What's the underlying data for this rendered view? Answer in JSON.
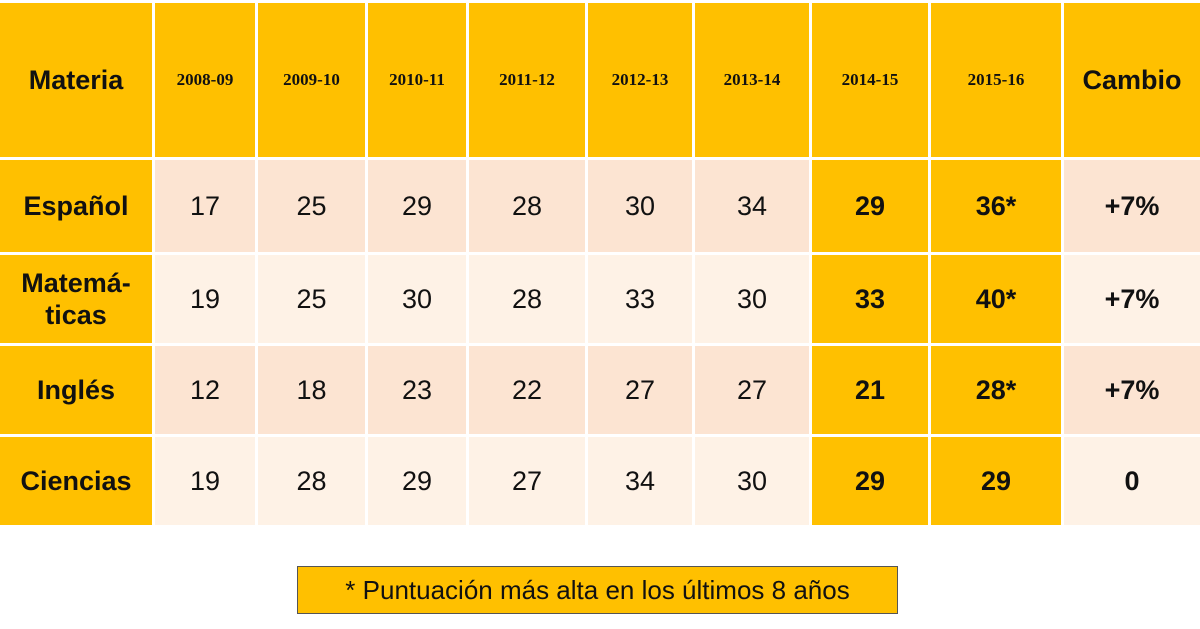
{
  "table": {
    "header": [
      "Materia",
      "2008-09",
      "2009-10",
      "2010-11",
      "2011-12",
      "2012-13",
      "2013-14",
      "2014-15",
      "2015-16",
      "Cambio"
    ],
    "rows": [
      [
        "Español",
        "17",
        "25",
        "29",
        "28",
        "30",
        "34",
        "29",
        "36*",
        "+7%"
      ],
      [
        "Matemá-\nticas",
        "19",
        "25",
        "30",
        "28",
        "33",
        "30",
        "33",
        "40*",
        "+7%"
      ],
      [
        "Inglés",
        "12",
        "18",
        "23",
        "22",
        "27",
        "27",
        "21",
        "28*",
        "+7%"
      ],
      [
        "Ciencias",
        "19",
        "28",
        "29",
        "27",
        "34",
        "30",
        "29",
        "29",
        "0"
      ]
    ]
  },
  "footnote": "* Puntuación más alta en los últimos 8 años"
}
